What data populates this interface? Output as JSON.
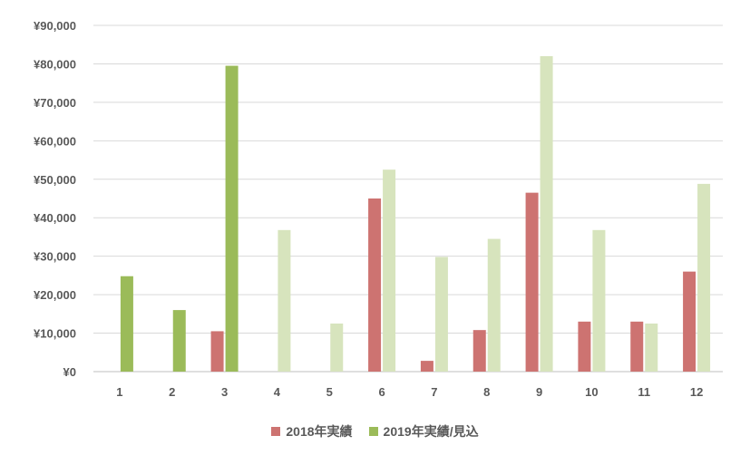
{
  "chart_data": {
    "type": "bar",
    "categories": [
      "1",
      "2",
      "3",
      "4",
      "5",
      "6",
      "7",
      "8",
      "9",
      "10",
      "11",
      "12"
    ],
    "y_ticks": [
      "¥0",
      "¥10,000",
      "¥20,000",
      "¥30,000",
      "¥40,000",
      "¥50,000",
      "¥60,000",
      "¥70,000",
      "¥80,000",
      "¥90,000"
    ],
    "ylim": [
      0,
      90000
    ],
    "grid": true,
    "legend_position": "bottom",
    "series": [
      {
        "name": "2018年実績",
        "color": "#cd7371",
        "values": [
          null,
          null,
          10500,
          null,
          null,
          45000,
          2800,
          10800,
          46500,
          13000,
          13000,
          26000
        ]
      },
      {
        "name": "2019年実績/見込",
        "colors_by_category": [
          "#9bbb59",
          "#9bbb59",
          "#9bbb59",
          "#d7e4bd",
          "#d7e4bd",
          "#d7e4bd",
          "#d7e4bd",
          "#d7e4bd",
          "#d7e4bd",
          "#d7e4bd",
          "#d7e4bd",
          "#d7e4bd"
        ],
        "legend_color": "#9bbb59",
        "values": [
          24800,
          16000,
          79500,
          36800,
          12500,
          52500,
          29800,
          34500,
          82000,
          36800,
          12500,
          48800
        ]
      }
    ]
  }
}
